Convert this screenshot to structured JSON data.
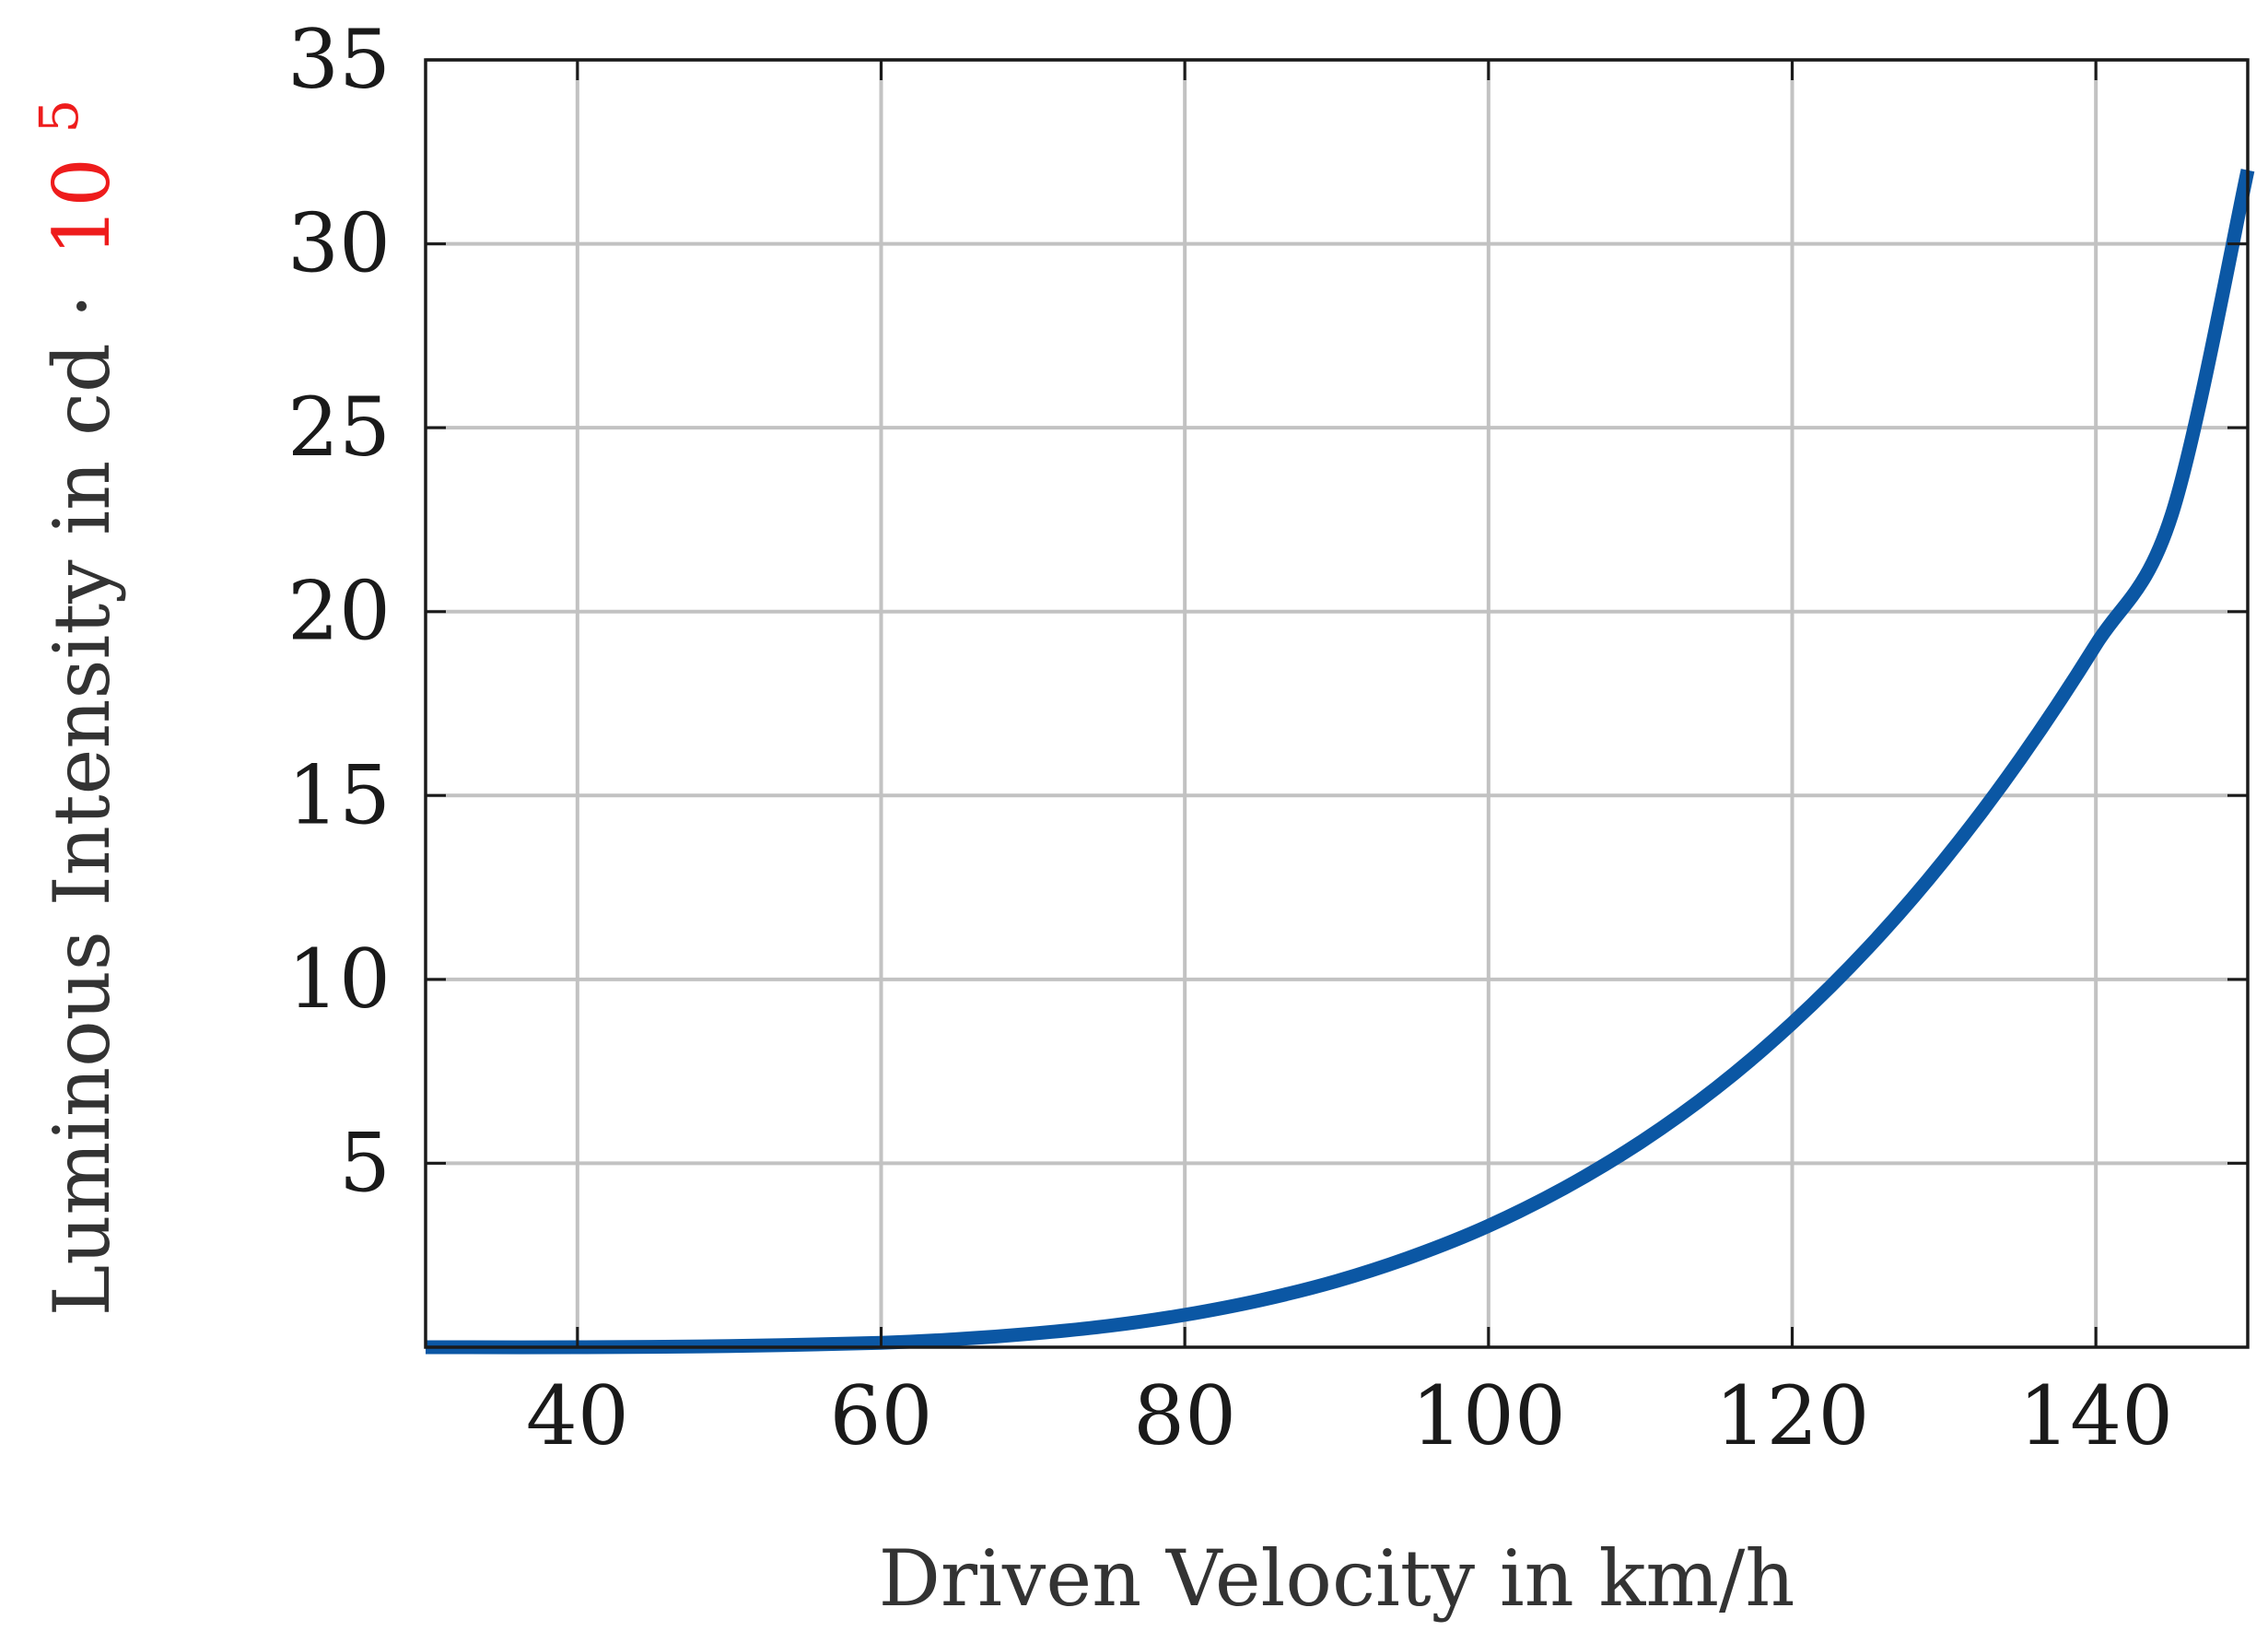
{
  "chart_data": {
    "type": "line",
    "title": "",
    "xlabel": "Driven Velocity in km/h",
    "ylabel": "Luminous Intensity in cd ·",
    "ylabel_multiplier": "10",
    "ylabel_multiplier_exponent": "5",
    "xlim": [
      30,
      150
    ],
    "ylim": [
      0,
      35
    ],
    "xticks": [
      40,
      60,
      80,
      100,
      120,
      140
    ],
    "xtick_labels": [
      "40",
      "60",
      "80",
      "100",
      "120",
      "140"
    ],
    "yticks": [
      5,
      10,
      15,
      20,
      25,
      30,
      35
    ],
    "ytick_labels": [
      "5",
      "10",
      "15",
      "20",
      "25",
      "30",
      "35"
    ],
    "grid": true,
    "series": [
      {
        "name": "Luminous Intensity",
        "color": "#0b57a4",
        "x": [
          30,
          40,
          50,
          60,
          65,
          70,
          75,
          80,
          85,
          90,
          95,
          100,
          105,
          110,
          115,
          120,
          125,
          130,
          135,
          140,
          145,
          150
        ],
        "y": [
          0.0,
          0.0,
          0.03,
          0.12,
          0.22,
          0.37,
          0.58,
          0.88,
          1.28,
          1.8,
          2.47,
          3.3,
          4.33,
          5.57,
          7.05,
          8.81,
          10.86,
          13.24,
          15.98,
          19.1,
          22.64,
          32.0
        ]
      }
    ]
  },
  "colors": {
    "accent_multiplier": "#ee1c1c",
    "line": "#0b57a4",
    "grid": "#c2c2c2"
  }
}
